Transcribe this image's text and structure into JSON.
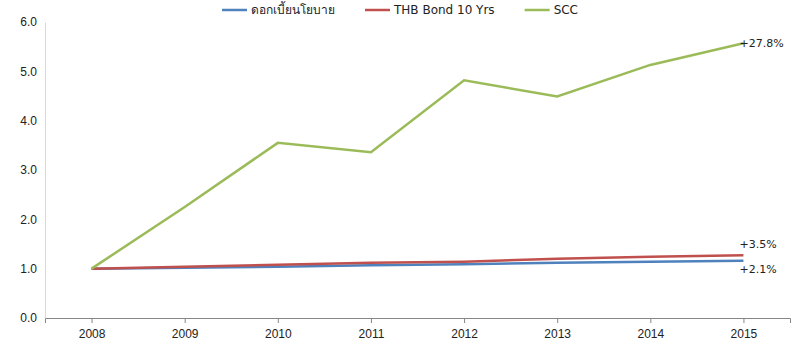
{
  "chart_data": {
    "type": "line",
    "categories": [
      "2008",
      "2009",
      "2010",
      "2011",
      "2012",
      "2013",
      "2014",
      "2015"
    ],
    "series": [
      {
        "name": "ดอกเบี้ยนโยบาย",
        "color": "#4f81bd",
        "values": [
          1.0,
          1.02,
          1.04,
          1.07,
          1.09,
          1.12,
          1.14,
          1.16
        ],
        "annotation": "+2.1%"
      },
      {
        "name": "THB Bond 10 Yrs",
        "color": "#c0504d",
        "values": [
          1.0,
          1.04,
          1.08,
          1.12,
          1.14,
          1.2,
          1.24,
          1.27
        ],
        "annotation": "+3.5%"
      },
      {
        "name": "SCC",
        "color": "#9bbb59",
        "values": [
          1.0,
          2.25,
          3.55,
          3.36,
          4.82,
          4.49,
          5.13,
          5.57
        ],
        "annotation": "+27.8%"
      }
    ],
    "ylim": [
      0,
      6
    ],
    "yticks": [
      {
        "value": 0,
        "label": "0.0"
      },
      {
        "value": 1,
        "label": "1.0"
      },
      {
        "value": 2,
        "label": "2.0"
      },
      {
        "value": 3,
        "label": "3.0"
      },
      {
        "value": 4,
        "label": "4.0"
      },
      {
        "value": 5,
        "label": "5.0"
      },
      {
        "value": 6,
        "label": "6.0"
      }
    ],
    "grid": false,
    "legend": "top"
  }
}
